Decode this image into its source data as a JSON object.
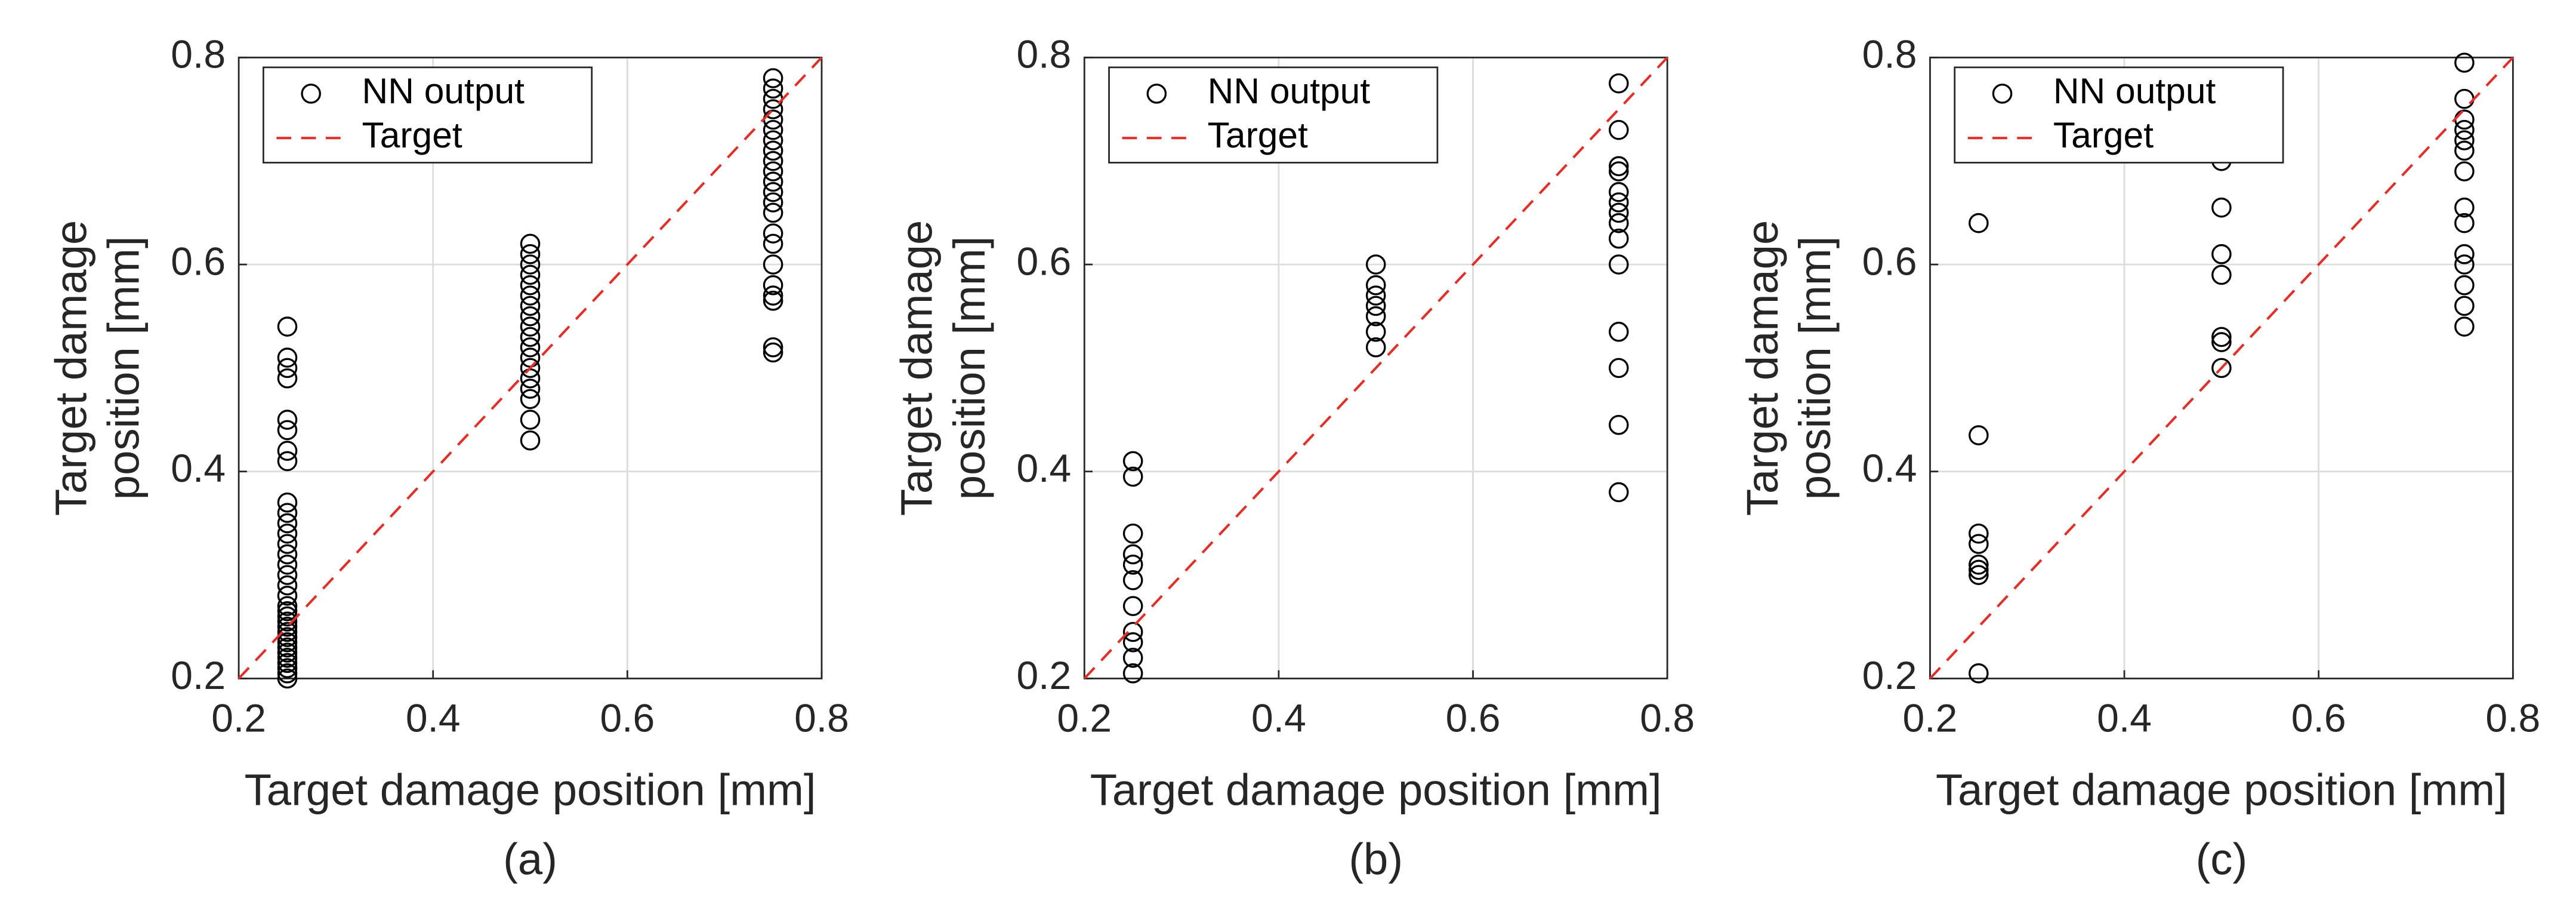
{
  "chart_data": [
    {
      "type": "scatter",
      "caption": "(a)",
      "xlabel": "Target damage position [mm]",
      "ylabel": [
        "Target damage",
        "position [mm]"
      ],
      "xlim": [
        0.2,
        0.8
      ],
      "ylim": [
        0.2,
        0.8
      ],
      "xticks": [
        0.2,
        0.4,
        0.6,
        0.8
      ],
      "yticks": [
        0.2,
        0.4,
        0.6,
        0.8
      ],
      "grid": true,
      "legend": "northwest",
      "series": [
        {
          "name": "NN output",
          "color": "#000000",
          "marker": "circle",
          "x": [
            0.25,
            0.25,
            0.25,
            0.25,
            0.25,
            0.25,
            0.25,
            0.25,
            0.25,
            0.25,
            0.25,
            0.25,
            0.25,
            0.25,
            0.25,
            0.25,
            0.25,
            0.25,
            0.25,
            0.25,
            0.25,
            0.25,
            0.25,
            0.25,
            0.25,
            0.25,
            0.25,
            0.25,
            0.25,
            0.25,
            0.25,
            0.25,
            0.25,
            0.5,
            0.5,
            0.5,
            0.5,
            0.5,
            0.5,
            0.5,
            0.5,
            0.5,
            0.5,
            0.5,
            0.5,
            0.5,
            0.5,
            0.5,
            0.5,
            0.5,
            0.5,
            0.75,
            0.75,
            0.75,
            0.75,
            0.75,
            0.75,
            0.75,
            0.75,
            0.75,
            0.75,
            0.75,
            0.75,
            0.75,
            0.75,
            0.75,
            0.75,
            0.75,
            0.75,
            0.75,
            0.75,
            0.75,
            0.75
          ],
          "values": [
            0.2,
            0.205,
            0.21,
            0.215,
            0.22,
            0.225,
            0.23,
            0.235,
            0.24,
            0.245,
            0.25,
            0.255,
            0.26,
            0.265,
            0.27,
            0.28,
            0.29,
            0.3,
            0.31,
            0.32,
            0.33,
            0.34,
            0.35,
            0.36,
            0.37,
            0.41,
            0.42,
            0.44,
            0.45,
            0.49,
            0.5,
            0.51,
            0.54,
            0.43,
            0.45,
            0.47,
            0.48,
            0.49,
            0.5,
            0.51,
            0.52,
            0.53,
            0.54,
            0.55,
            0.56,
            0.57,
            0.58,
            0.59,
            0.6,
            0.61,
            0.62,
            0.515,
            0.52,
            0.565,
            0.57,
            0.58,
            0.6,
            0.62,
            0.63,
            0.65,
            0.66,
            0.67,
            0.68,
            0.69,
            0.7,
            0.71,
            0.72,
            0.73,
            0.74,
            0.75,
            0.76,
            0.77,
            0.78
          ]
        },
        {
          "name": "Target",
          "color": "#e0302a",
          "style": "dashed",
          "x": [
            0.2,
            0.8
          ],
          "values": [
            0.2,
            0.8
          ]
        }
      ]
    },
    {
      "type": "scatter",
      "caption": "(b)",
      "xlabel": "Target damage position [mm]",
      "ylabel": [
        "Target damage",
        "position [mm]"
      ],
      "xlim": [
        0.2,
        0.8
      ],
      "ylim": [
        0.2,
        0.8
      ],
      "xticks": [
        0.2,
        0.4,
        0.6,
        0.8
      ],
      "yticks": [
        0.2,
        0.4,
        0.6,
        0.8
      ],
      "grid": true,
      "legend": "northwest",
      "series": [
        {
          "name": "NN output",
          "color": "#000000",
          "marker": "circle",
          "x": [
            0.25,
            0.25,
            0.25,
            0.25,
            0.25,
            0.25,
            0.25,
            0.25,
            0.25,
            0.25,
            0.25,
            0.5,
            0.5,
            0.5,
            0.5,
            0.5,
            0.5,
            0.5,
            0.75,
            0.75,
            0.75,
            0.75,
            0.75,
            0.75,
            0.75,
            0.75,
            0.75,
            0.75,
            0.75,
            0.75,
            0.75,
            0.75
          ],
          "values": [
            0.205,
            0.22,
            0.235,
            0.245,
            0.27,
            0.295,
            0.31,
            0.32,
            0.34,
            0.395,
            0.41,
            0.52,
            0.535,
            0.55,
            0.56,
            0.57,
            0.58,
            0.6,
            0.38,
            0.445,
            0.5,
            0.535,
            0.6,
            0.625,
            0.64,
            0.65,
            0.66,
            0.67,
            0.69,
            0.695,
            0.73,
            0.775
          ]
        },
        {
          "name": "Target",
          "color": "#e0302a",
          "style": "dashed",
          "x": [
            0.2,
            0.8
          ],
          "values": [
            0.2,
            0.8
          ]
        }
      ]
    },
    {
      "type": "scatter",
      "caption": "(c)",
      "xlabel": "Target damage position [mm]",
      "ylabel": [
        "Target damage",
        "position [mm]"
      ],
      "xlim": [
        0.2,
        0.8
      ],
      "ylim": [
        0.2,
        0.8
      ],
      "xticks": [
        0.2,
        0.4,
        0.6,
        0.8
      ],
      "yticks": [
        0.2,
        0.4,
        0.6,
        0.8
      ],
      "grid": true,
      "legend": "northwest",
      "series": [
        {
          "name": "NN output",
          "color": "#000000",
          "marker": "circle",
          "x": [
            0.25,
            0.25,
            0.25,
            0.25,
            0.25,
            0.25,
            0.25,
            0.25,
            0.5,
            0.5,
            0.5,
            0.5,
            0.5,
            0.5,
            0.5,
            0.75,
            0.75,
            0.75,
            0.75,
            0.75,
            0.75,
            0.75,
            0.75,
            0.75,
            0.75,
            0.75,
            0.75,
            0.75,
            0.75
          ],
          "values": [
            0.205,
            0.3,
            0.305,
            0.31,
            0.33,
            0.34,
            0.435,
            0.64,
            0.5,
            0.525,
            0.53,
            0.59,
            0.61,
            0.655,
            0.7,
            0.54,
            0.56,
            0.58,
            0.6,
            0.61,
            0.64,
            0.655,
            0.69,
            0.71,
            0.72,
            0.73,
            0.74,
            0.76,
            0.795
          ]
        },
        {
          "name": "Target",
          "color": "#e0302a",
          "style": "dashed",
          "x": [
            0.2,
            0.8
          ],
          "values": [
            0.2,
            0.8
          ]
        }
      ]
    }
  ]
}
